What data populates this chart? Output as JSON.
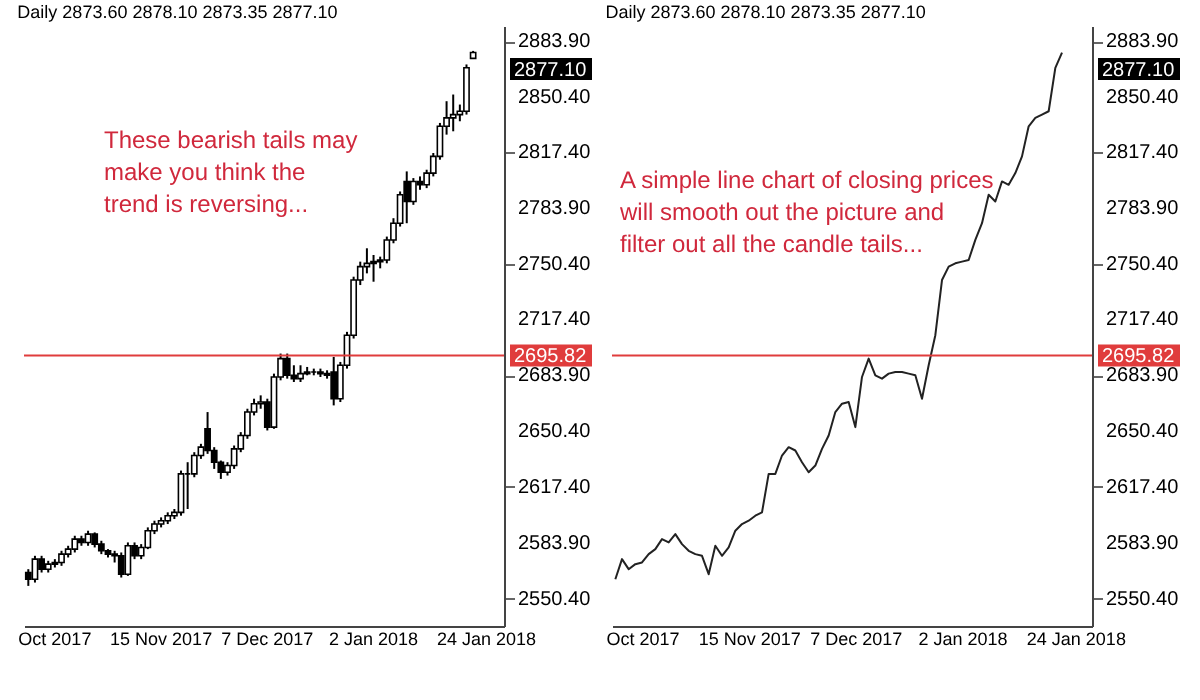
{
  "chart_data": [
    {
      "type": "candlestick",
      "subtitle": "Daily 2873.60 2878.10 2873.35 2877.10",
      "categories": [
        null,
        null,
        null,
        null,
        "Oct 2017",
        null,
        null,
        null,
        null,
        null,
        null,
        null,
        null,
        null,
        null,
        null,
        null,
        null,
        null,
        null,
        "15 Nov 2017",
        null,
        null,
        null,
        null,
        null,
        null,
        null,
        null,
        null,
        null,
        null,
        null,
        null,
        null,
        null,
        "7 Dec 2017",
        null,
        null,
        null,
        null,
        null,
        null,
        null,
        null,
        null,
        null,
        null,
        null,
        null,
        null,
        null,
        "2 Jan 2018",
        null,
        null,
        null,
        null,
        null,
        null,
        null,
        null,
        null,
        null,
        null,
        null,
        null,
        null,
        null,
        null,
        "24 Jan 2018",
        null,
        null
      ],
      "ohlc": [
        [
          2566,
          2568,
          2558,
          2562
        ],
        [
          2562,
          2576,
          2560,
          2574
        ],
        [
          2574,
          2576,
          2566,
          2568
        ],
        [
          2568,
          2573,
          2566,
          2571
        ],
        [
          2571,
          2574,
          2569,
          2572
        ],
        [
          2572,
          2579,
          2570,
          2577
        ],
        [
          2577,
          2582,
          2575,
          2580
        ],
        [
          2580,
          2588,
          2578,
          2586
        ],
        [
          2586,
          2588,
          2582,
          2584
        ],
        [
          2584,
          2591,
          2582,
          2589
        ],
        [
          2589,
          2590,
          2581,
          2583
        ],
        [
          2583,
          2585,
          2577,
          2579
        ],
        [
          2579,
          2580,
          2575,
          2577
        ],
        [
          2577,
          2579,
          2572,
          2576
        ],
        [
          2576,
          2578,
          2563,
          2565
        ],
        [
          2565,
          2584,
          2564,
          2582
        ],
        [
          2582,
          2584,
          2574,
          2576
        ],
        [
          2576,
          2583,
          2574,
          2581
        ],
        [
          2581,
          2593,
          2580,
          2591
        ],
        [
          2591,
          2597,
          2589,
          2595
        ],
        [
          2595,
          2599,
          2593,
          2597
        ],
        [
          2597,
          2602,
          2595,
          2600
        ],
        [
          2600,
          2604,
          2598,
          2602
        ],
        [
          2602,
          2627,
          2600,
          2625
        ],
        [
          2625,
          2632,
          2604,
          2625
        ],
        [
          2625,
          2638,
          2623,
          2636
        ],
        [
          2636,
          2643,
          2634,
          2641
        ],
        [
          2652,
          2662,
          2637,
          2639
        ],
        [
          2639,
          2641,
          2628,
          2632
        ],
        [
          2632,
          2633,
          2622,
          2626
        ],
        [
          2626,
          2632,
          2624,
          2630
        ],
        [
          2630,
          2642,
          2628,
          2640
        ],
        [
          2640,
          2650,
          2638,
          2648
        ],
        [
          2648,
          2664,
          2646,
          2662
        ],
        [
          2662,
          2670,
          2660,
          2667
        ],
        [
          2667,
          2672,
          2664,
          2668
        ],
        [
          2668,
          2670,
          2651,
          2653
        ],
        [
          2653,
          2685,
          2652,
          2683
        ],
        [
          2683,
          2697,
          2681,
          2694
        ],
        [
          2694,
          2697,
          2682,
          2684
        ],
        [
          2684,
          2690,
          2680,
          2682
        ],
        [
          2682,
          2690,
          2680,
          2685
        ],
        [
          2685,
          2689,
          2684,
          2686
        ],
        [
          2686,
          2688,
          2684,
          2686
        ],
        [
          2686,
          2688,
          2683,
          2685
        ],
        [
          2685,
          2687,
          2682,
          2684
        ],
        [
          2686,
          2695,
          2666,
          2670
        ],
        [
          2670,
          2692,
          2668,
          2690
        ],
        [
          2690,
          2710,
          2688,
          2708
        ],
        [
          2708,
          2743,
          2706,
          2741
        ],
        [
          2741,
          2752,
          2738,
          2749
        ],
        [
          2749,
          2760,
          2745,
          2751
        ],
        [
          2751,
          2756,
          2740,
          2752
        ],
        [
          2752,
          2755,
          2748,
          2753
        ],
        [
          2753,
          2767,
          2751,
          2765
        ],
        [
          2765,
          2778,
          2763,
          2775
        ],
        [
          2775,
          2794,
          2773,
          2792
        ],
        [
          2800,
          2806,
          2775,
          2788
        ],
        [
          2788,
          2802,
          2786,
          2800
        ],
        [
          2800,
          2803,
          2795,
          2798
        ],
        [
          2798,
          2807,
          2796,
          2805
        ],
        [
          2805,
          2817,
          2803,
          2815
        ],
        [
          2815,
          2835,
          2813,
          2833
        ],
        [
          2833,
          2848,
          2828,
          2838
        ],
        [
          2838,
          2852,
          2830,
          2840
        ],
        [
          2840,
          2846,
          2836,
          2842
        ],
        [
          2842,
          2870,
          2840,
          2868
        ],
        [
          2873.6,
          2878.1,
          2873.35,
          2877.1
        ],
        null,
        null,
        null,
        null
      ],
      "ylim": [
        2534,
        2893
      ],
      "yticks": [
        {
          "value": 2550.4,
          "label": "2550.40"
        },
        {
          "value": 2583.9,
          "label": "2583.90"
        },
        {
          "value": 2617.4,
          "label": "2617.40"
        },
        {
          "value": 2650.4,
          "label": "2650.40"
        },
        {
          "value": 2683.9,
          "label": "2683.90"
        },
        {
          "value": 2717.4,
          "label": "2717.40"
        },
        {
          "value": 2750.4,
          "label": "2750.40"
        },
        {
          "value": 2783.9,
          "label": "2783.90"
        },
        {
          "value": 2817.4,
          "label": "2817.40"
        },
        {
          "value": 2850.4,
          "label": "2850.40"
        },
        {
          "value": 2883.9,
          "label": "2883.90"
        }
      ],
      "ref_lines": [
        {
          "axis": "y",
          "value": 2695.82,
          "label": "2695.82",
          "color": "#e03c3c"
        }
      ],
      "annotations": [
        "These bearish tails may make you think the trend is reversing...",
        "2877.10"
      ],
      "grid": false
    },
    {
      "type": "line",
      "subtitle": "Daily 2873.60 2878.10 2873.35 2877.10",
      "categories": [
        null,
        null,
        null,
        null,
        "Oct 2017",
        null,
        null,
        null,
        null,
        null,
        null,
        null,
        null,
        null,
        null,
        null,
        null,
        null,
        null,
        null,
        "15 Nov 2017",
        null,
        null,
        null,
        null,
        null,
        null,
        null,
        null,
        null,
        null,
        null,
        null,
        null,
        null,
        null,
        "7 Dec 2017",
        null,
        null,
        null,
        null,
        null,
        null,
        null,
        null,
        null,
        null,
        null,
        null,
        null,
        null,
        null,
        "2 Jan 2018",
        null,
        null,
        null,
        null,
        null,
        null,
        null,
        null,
        null,
        null,
        null,
        null,
        null,
        null,
        null,
        null,
        "24 Jan 2018",
        null,
        null
      ],
      "series": [
        {
          "color": "#222222",
          "values": [
            2562,
            2574,
            2568,
            2571,
            2572,
            2577,
            2580,
            2586,
            2584,
            2589,
            2583,
            2579,
            2577,
            2576,
            2565,
            2582,
            2576,
            2581,
            2591,
            2595,
            2597,
            2600,
            2602,
            2625,
            2625,
            2636,
            2641,
            2639,
            2632,
            2626,
            2630,
            2640,
            2648,
            2662,
            2667,
            2668,
            2653,
            2683,
            2694,
            2684,
            2682,
            2685,
            2686,
            2686,
            2685,
            2684,
            2670,
            2690,
            2708,
            2741,
            2749,
            2751,
            2752,
            2753,
            2765,
            2775,
            2792,
            2788,
            2800,
            2798,
            2805,
            2815,
            2833,
            2838,
            2840,
            2842,
            2868,
            2877.1,
            null,
            null,
            null,
            null
          ]
        }
      ],
      "ylim": [
        2534,
        2893
      ],
      "yticks": [
        {
          "value": 2550.4,
          "label": "2550.40"
        },
        {
          "value": 2583.9,
          "label": "2583.90"
        },
        {
          "value": 2617.4,
          "label": "2617.40"
        },
        {
          "value": 2650.4,
          "label": "2650.40"
        },
        {
          "value": 2683.9,
          "label": "2683.90"
        },
        {
          "value": 2717.4,
          "label": "2717.40"
        },
        {
          "value": 2750.4,
          "label": "2750.40"
        },
        {
          "value": 2783.9,
          "label": "2783.90"
        },
        {
          "value": 2817.4,
          "label": "2817.40"
        },
        {
          "value": 2850.4,
          "label": "2850.40"
        },
        {
          "value": 2883.9,
          "label": "2883.90"
        }
      ],
      "ref_lines": [
        {
          "axis": "y",
          "value": 2695.82,
          "label": "2695.82",
          "color": "#e03c3c"
        }
      ],
      "annotations": [
        "A simple line chart of closing prices will smooth out the picture and filter out all the candle tails...",
        "2877.10"
      ],
      "grid": false,
      "line_style": "solid",
      "marker": "none"
    }
  ]
}
